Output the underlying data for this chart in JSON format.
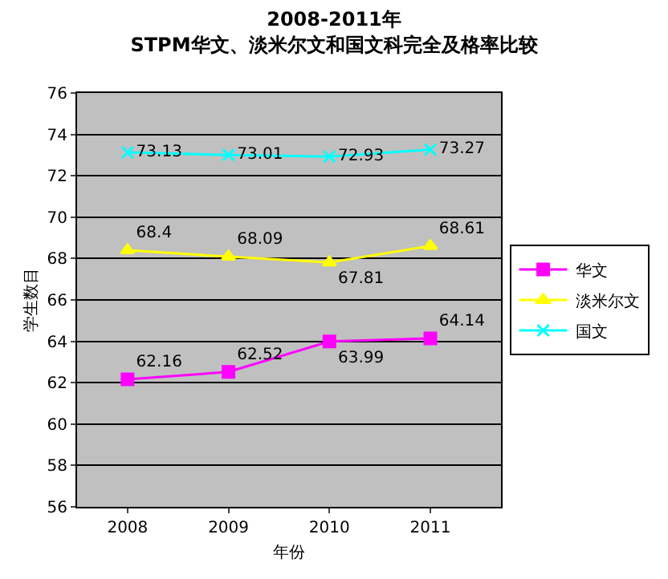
{
  "chart_data": {
    "type": "line",
    "title": "2008-2011年",
    "subtitle": "STPM华文、淡米尔文和国文科完全及格率比较",
    "xlabel": "年份",
    "ylabel": "学生数目",
    "categories": [
      "2008",
      "2009",
      "2010",
      "2011"
    ],
    "series": [
      {
        "name": "华文",
        "color": "#ff00ff",
        "marker": "square",
        "values": [
          62.16,
          62.52,
          63.99,
          64.14
        ]
      },
      {
        "name": "淡米尔文",
        "color": "#ffff00",
        "marker": "triangle",
        "values": [
          68.4,
          68.09,
          67.81,
          68.61
        ]
      },
      {
        "name": "国文",
        "color": "#00ffff",
        "marker": "cross",
        "values": [
          73.13,
          73.01,
          72.93,
          73.27
        ]
      }
    ],
    "ylim": [
      56,
      76
    ],
    "yticks": [
      56,
      58,
      60,
      62,
      64,
      66,
      68,
      70,
      72,
      74,
      76
    ],
    "grid": "y",
    "legend": "right",
    "data_labels": true
  }
}
